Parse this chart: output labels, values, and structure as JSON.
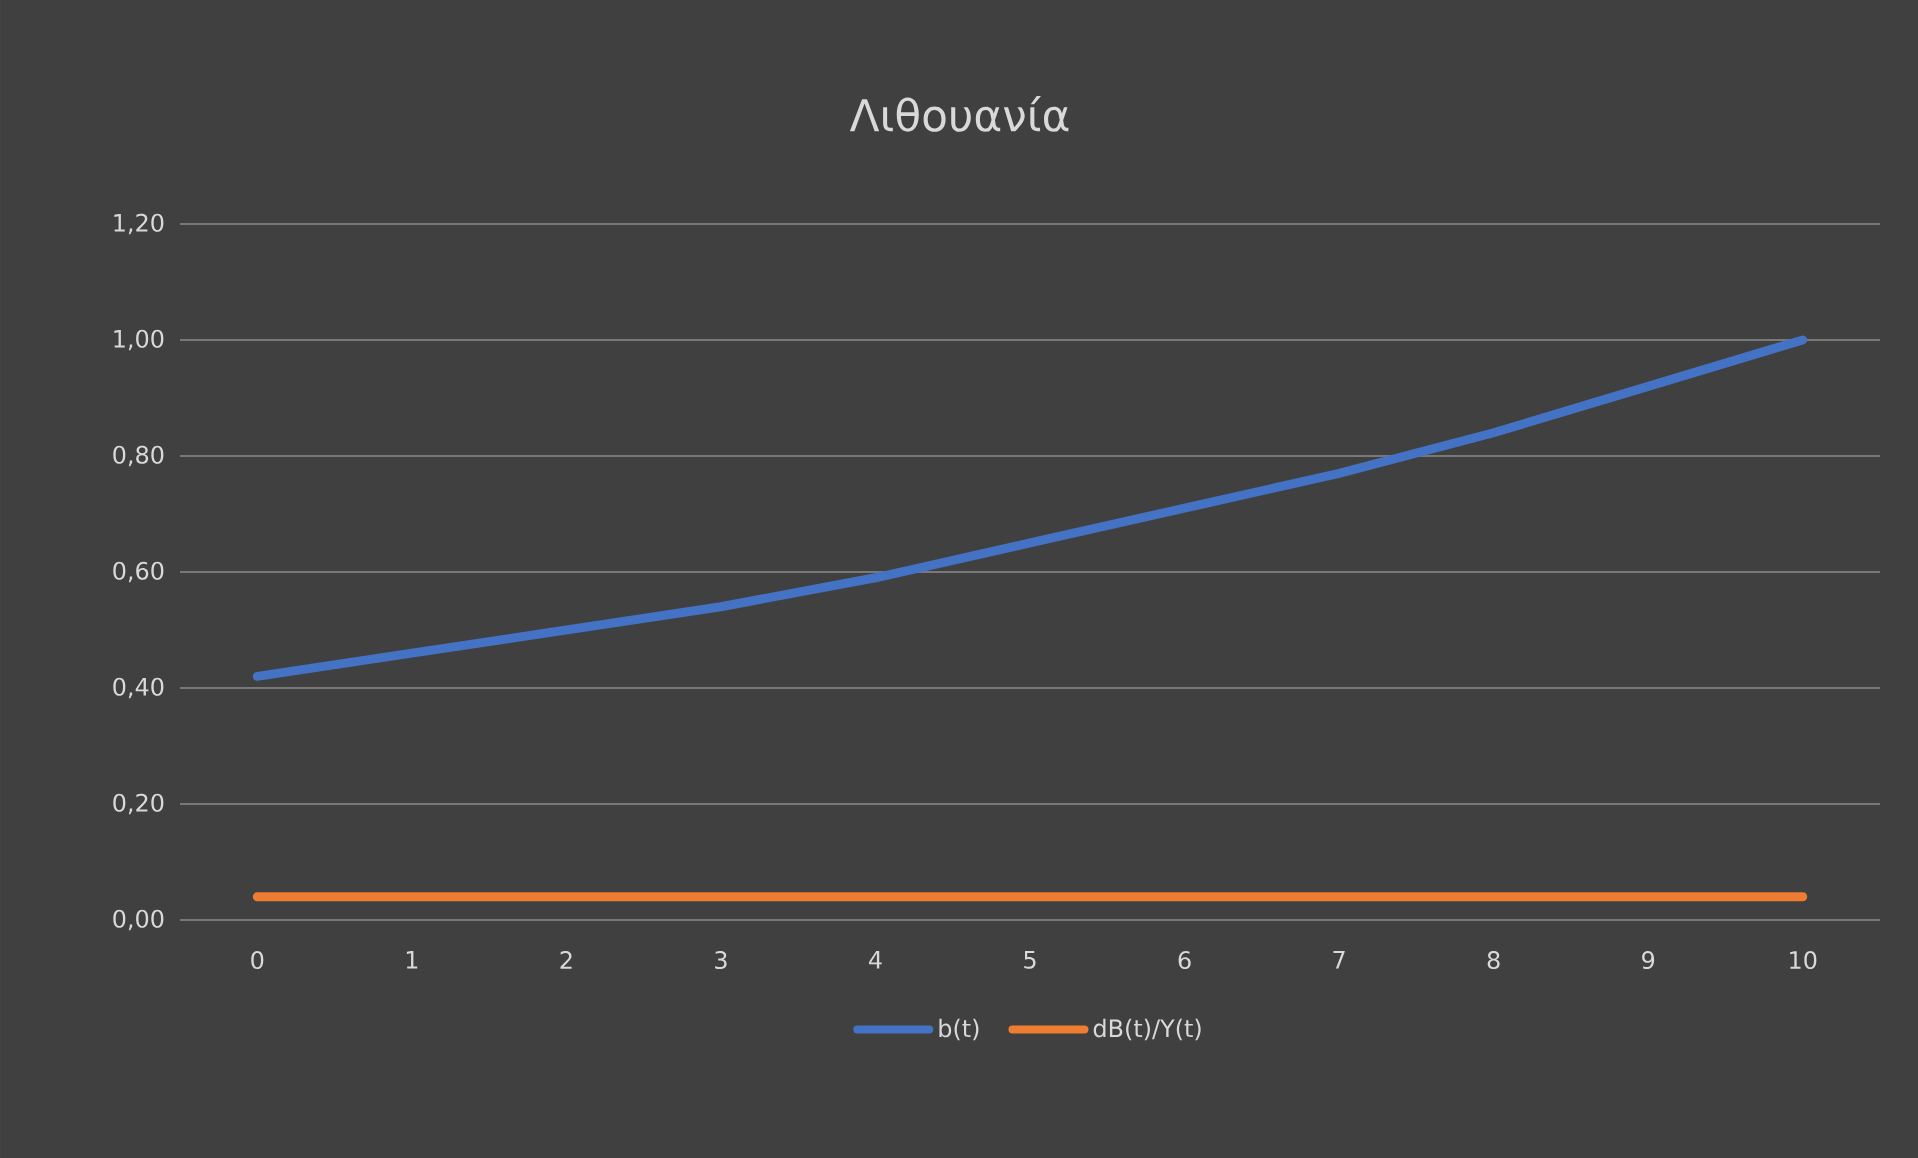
{
  "chart_data": {
    "type": "line",
    "title": "Λιθουανία",
    "categories": [
      "0",
      "1",
      "2",
      "3",
      "4",
      "5",
      "6",
      "7",
      "8",
      "9",
      "10"
    ],
    "series": [
      {
        "name": "b(t)",
        "color": "#4472c4",
        "values": [
          0.42,
          0.46,
          0.5,
          0.54,
          0.59,
          0.65,
          0.71,
          0.77,
          0.84,
          0.92,
          1.0
        ]
      },
      {
        "name": "dB(t)/Y(t)",
        "color": "#ed7d31",
        "values": [
          0.04,
          0.04,
          0.04,
          0.04,
          0.04,
          0.04,
          0.04,
          0.04,
          0.04,
          0.04,
          0.04
        ]
      }
    ],
    "ylim": [
      0,
      1.2
    ],
    "yticks": [
      {
        "value": 0,
        "label": "0,00"
      },
      {
        "value": 0.2,
        "label": "0,20"
      },
      {
        "value": 0.4,
        "label": "0,40"
      },
      {
        "value": 0.6,
        "label": "0,60"
      },
      {
        "value": 0.8,
        "label": "0,80"
      },
      {
        "value": 1.0,
        "label": "1,00"
      },
      {
        "value": 1.2,
        "label": "1,20"
      }
    ],
    "grid": "y",
    "legend": "bottom",
    "marker": "none",
    "line_style": "solid"
  }
}
